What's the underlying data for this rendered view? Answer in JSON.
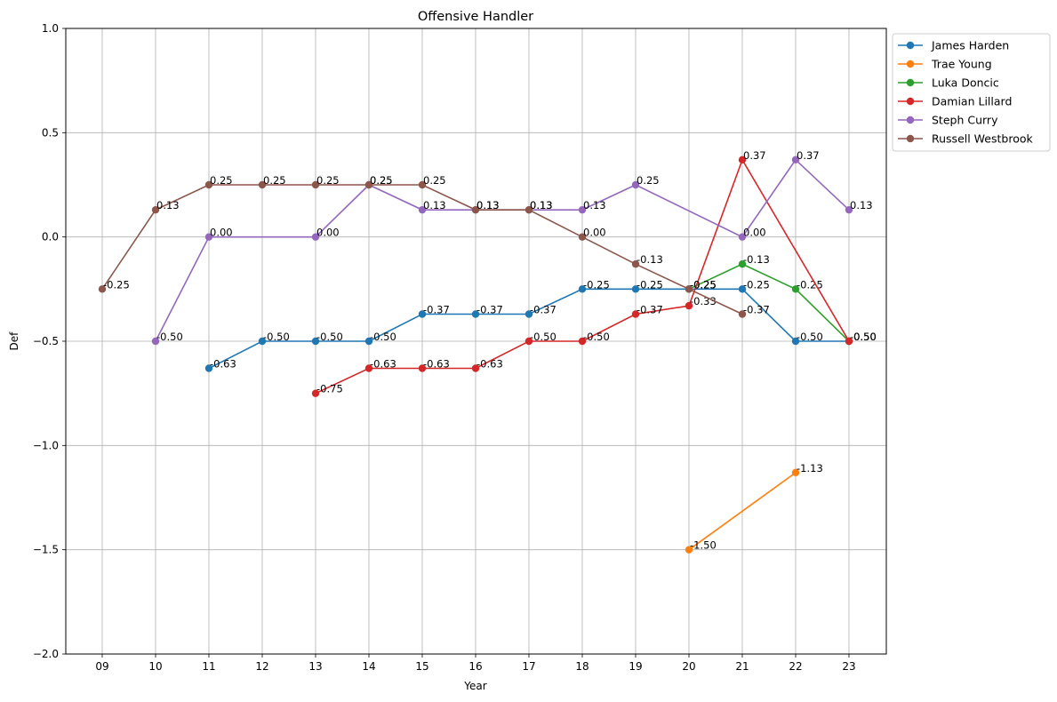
{
  "chart_data": {
    "type": "line",
    "title": "Offensive Handler",
    "xlabel": "Year",
    "ylabel": "Def",
    "categories": [
      "09",
      "10",
      "11",
      "12",
      "13",
      "14",
      "15",
      "16",
      "17",
      "18",
      "19",
      "20",
      "21",
      "22",
      "23"
    ],
    "ylim": [
      -2.0,
      1.0
    ],
    "yticks": [
      {
        "value": 1.0,
        "label": "1.0"
      },
      {
        "value": 0.5,
        "label": "0.5"
      },
      {
        "value": 0.0,
        "label": "0.0"
      },
      {
        "value": -0.5,
        "label": "−0.5"
      },
      {
        "value": -1.0,
        "label": "−1.0"
      },
      {
        "value": -1.5,
        "label": "−1.5"
      },
      {
        "value": -2.0,
        "label": "−2.0"
      }
    ],
    "grid": true,
    "legend_position": "outside-top-right",
    "series": [
      {
        "name": "James Harden",
        "color": "#1f77b4",
        "points": [
          [
            "11",
            -0.63
          ],
          [
            "12",
            -0.5
          ],
          [
            "13",
            -0.5
          ],
          [
            "14",
            -0.5
          ],
          [
            "15",
            -0.37
          ],
          [
            "16",
            -0.37
          ],
          [
            "17",
            -0.37
          ],
          [
            "18",
            -0.25
          ],
          [
            "19",
            -0.25
          ],
          [
            "20",
            -0.25
          ],
          [
            "21",
            -0.25
          ],
          [
            "22",
            -0.5
          ],
          [
            "23",
            -0.5
          ]
        ],
        "labels": [
          "-0.63",
          "-0.50",
          "-0.50",
          "-0.50",
          "-0.37",
          "-0.37",
          "-0.37",
          "-0.25",
          "-0.25",
          "-0.25",
          "-0.25",
          "-0.50",
          "-0.50"
        ]
      },
      {
        "name": "Trae Young",
        "color": "#ff7f0e",
        "points": [
          [
            "20",
            -1.5
          ],
          [
            "22",
            -1.13
          ]
        ],
        "labels": [
          "-1.50",
          "-1.13"
        ]
      },
      {
        "name": "Luka Doncic",
        "color": "#2ca02c",
        "points": [
          [
            "20",
            -0.25
          ],
          [
            "21",
            -0.13
          ],
          [
            "22",
            -0.25
          ],
          [
            "23",
            -0.5
          ]
        ],
        "labels": [
          "-0.25",
          "-0.13",
          "-0.25",
          "-0.50"
        ]
      },
      {
        "name": "Damian Lillard",
        "color": "#d62728",
        "points": [
          [
            "13",
            -0.75
          ],
          [
            "14",
            -0.63
          ],
          [
            "15",
            -0.63
          ],
          [
            "16",
            -0.63
          ],
          [
            "17",
            -0.5
          ],
          [
            "18",
            -0.5
          ],
          [
            "19",
            -0.37
          ],
          [
            "20",
            -0.33
          ],
          [
            "21",
            0.37
          ],
          [
            "23",
            -0.5
          ]
        ],
        "labels": [
          "-0.75",
          "-0.63",
          "-0.63",
          "-0.63",
          "-0.50",
          "-0.50",
          "-0.37",
          "-0.33",
          "0.37",
          "-0.50"
        ]
      },
      {
        "name": "Steph Curry",
        "color": "#9467bd",
        "points": [
          [
            "10",
            -0.5
          ],
          [
            "11",
            0.0
          ],
          [
            "13",
            0.0
          ],
          [
            "14",
            0.25
          ],
          [
            "15",
            0.13
          ],
          [
            "16",
            0.13
          ],
          [
            "17",
            0.13
          ],
          [
            "18",
            0.13
          ],
          [
            "19",
            0.25
          ],
          [
            "21",
            0.0
          ],
          [
            "22",
            0.37
          ],
          [
            "23",
            0.13
          ]
        ],
        "labels": [
          "-0.50",
          "0.00",
          "0.00",
          "0.25",
          "0.13",
          "0.13",
          "0.13",
          "0.13",
          "0.25",
          "0.00",
          "0.37",
          "0.13"
        ]
      },
      {
        "name": "Russell Westbrook",
        "color": "#8c564b",
        "points": [
          [
            "09",
            -0.25
          ],
          [
            "10",
            0.13
          ],
          [
            "11",
            0.25
          ],
          [
            "12",
            0.25
          ],
          [
            "13",
            0.25
          ],
          [
            "14",
            0.25
          ],
          [
            "15",
            0.25
          ],
          [
            "16",
            0.13
          ],
          [
            "17",
            0.13
          ],
          [
            "18",
            0.0
          ],
          [
            "19",
            -0.13
          ],
          [
            "20",
            -0.25
          ],
          [
            "21",
            -0.37
          ]
        ],
        "labels": [
          "-0.25",
          "0.13",
          "0.25",
          "0.25",
          "0.25",
          "0.25",
          "0.25",
          "0.13",
          "0.13",
          "0.00",
          "-0.13",
          "-0.25",
          "-0.37"
        ]
      }
    ]
  }
}
